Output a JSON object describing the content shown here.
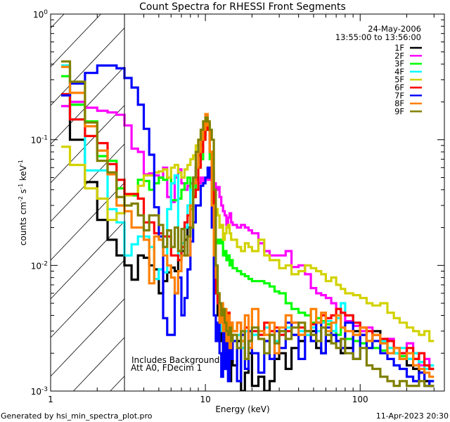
{
  "chart_data": {
    "type": "line",
    "title": "Count Spectra for RHESSI Front Segments",
    "xlabel": "Energy (keV)",
    "ylabel": "counts cm-2 s-1 keV-1",
    "ylabel_parts": {
      "base": "counts cm",
      "e1": "-2",
      "mid": " s",
      "e2": "-1",
      "tail": " keV",
      "e3": "-1"
    },
    "xscale": "log",
    "yscale": "log",
    "xlim": [
      1,
      350
    ],
    "ylim": [
      0.001,
      1
    ],
    "x_ticks": [
      {
        "v": 1,
        "label": "1"
      },
      {
        "v": 10,
        "label": "10"
      },
      {
        "v": 100,
        "label": "100"
      }
    ],
    "y_ticks": [
      {
        "v": 1,
        "base": "10",
        "exp": "0"
      },
      {
        "v": 0.1,
        "base": "10",
        "exp": "-1"
      },
      {
        "v": 0.01,
        "base": "10",
        "exp": "-2"
      },
      {
        "v": 0.001,
        "base": "10",
        "exp": "-3"
      }
    ],
    "shaded_region_keV": [
      1,
      3
    ],
    "date": "24-May-2006",
    "time_range": "13:55:00 to 13:56:00",
    "annotations": [
      "Includes Background",
      "Att A0, FDecim 1"
    ],
    "legend_position": "top-right",
    "energy_edges": [
      1.17,
      1.333,
      1.667,
      2,
      2.333,
      2.667,
      3,
      3.333,
      3.667,
      4,
      4.333,
      4.667,
      5,
      5.333,
      5.667,
      6,
      6.333,
      6.667,
      7,
      7.333,
      7.667,
      8,
      8.333,
      8.667,
      9,
      9.333,
      9.667,
      10,
      10.333,
      10.667,
      11,
      11.333,
      11.667,
      12,
      12.333,
      12.667,
      13,
      13.333,
      13.667,
      14,
      14.333,
      14.667,
      15,
      16,
      17,
      18,
      19,
      20,
      22,
      24,
      26,
      28,
      30,
      33,
      36,
      40,
      44,
      48,
      52,
      56,
      60,
      65,
      70,
      75,
      80,
      90,
      100,
      110,
      120,
      135,
      150,
      165,
      180,
      200,
      220,
      240,
      260,
      280,
      300
    ],
    "series": [
      {
        "name": "1F",
        "color": "#000000",
        "values": [
          0.23,
          0.1,
          0.046,
          0.023,
          0.016,
          0.012,
          0.01,
          0.0077,
          0.012,
          0.0115,
          0.01,
          0.0093,
          0.006,
          0.0075,
          0.0088,
          0.0096,
          0.009,
          0.011,
          0.013,
          0.016,
          0.02,
          0.03,
          0.045,
          0.06,
          0.075,
          0.09,
          0.11,
          0.14,
          0.12,
          0.08,
          0.04,
          0.012,
          0.006,
          0.004,
          0.003,
          0.0025,
          0.002,
          0.0028,
          0.0015,
          0.0022,
          0.0012,
          0.0018,
          0.0016,
          0.0025,
          0.001,
          0.0014,
          0.002,
          0.0011,
          0.0013,
          0.0009,
          0.0012,
          0.0018,
          0.002,
          0.0015,
          0.0022,
          0.0025,
          0.0028,
          0.003,
          0.0022,
          0.002,
          0.0025,
          0.0028,
          0.0025,
          0.002,
          0.0022,
          0.003,
          0.0028,
          0.0025,
          0.003,
          0.0025,
          0.0022,
          0.002,
          0.0018,
          0.0016,
          0.0015,
          0.0014,
          0.0012,
          0.0011
        ]
      },
      {
        "name": "2F",
        "color": "#ff00ff",
        "values": [
          0.185,
          0.2,
          0.18,
          0.17,
          0.165,
          0.158,
          0.13,
          0.085,
          0.08,
          0.053,
          0.054,
          0.052,
          0.05,
          0.06,
          0.035,
          0.032,
          0.05,
          0.058,
          0.045,
          0.04,
          0.043,
          0.045,
          0.05,
          0.048,
          0.045,
          0.05,
          0.047,
          0.048,
          0.05,
          0.048,
          0.055,
          0.045,
          0.04,
          0.042,
          0.035,
          0.03,
          0.027,
          0.025,
          0.021,
          0.024,
          0.026,
          0.022,
          0.021,
          0.02,
          0.021,
          0.02,
          0.019,
          0.018,
          0.015,
          0.013,
          0.012,
          0.012,
          0.012,
          0.013,
          0.0097,
          0.01,
          0.0085,
          0.0066,
          0.006,
          0.0058,
          0.0055,
          0.005,
          0.0045,
          0.0042,
          0.0036,
          0.0033,
          0.003,
          0.0032,
          0.0028,
          0.0025,
          0.0026,
          0.0022,
          0.002,
          0.0024,
          0.0018,
          0.0016,
          0.0018,
          0.0015
        ]
      },
      {
        "name": "3F",
        "color": "#00ff00",
        "values": [
          0.32,
          0.19,
          0.14,
          0.074,
          0.068,
          0.041,
          0.036,
          0.036,
          0.048,
          0.047,
          0.04,
          0.045,
          0.05,
          0.048,
          0.05,
          0.033,
          0.033,
          0.034,
          0.04,
          0.045,
          0.05,
          0.028,
          0.035,
          0.05,
          0.06,
          0.07,
          0.1,
          0.13,
          0.12,
          0.07,
          0.03,
          0.016,
          0.015,
          0.016,
          0.015,
          0.016,
          0.012,
          0.013,
          0.011,
          0.012,
          0.01,
          0.011,
          0.0095,
          0.009,
          0.0085,
          0.0082,
          0.0078,
          0.0075,
          0.0075,
          0.0072,
          0.0068,
          0.0062,
          0.006,
          0.005,
          0.0045,
          0.0042,
          0.004,
          0.0035,
          0.0038,
          0.0036,
          0.0034,
          0.003,
          0.0028,
          0.0032,
          0.0026,
          0.0025,
          0.0024,
          0.0025,
          0.0022,
          0.0021,
          0.0022,
          0.002,
          0.0019,
          0.0018,
          0.002,
          0.0017,
          0.0016,
          0.0015
        ]
      },
      {
        "name": "4F",
        "color": "#00ffff",
        "values": [
          0.39,
          0.145,
          0.057,
          0.057,
          0.028,
          0.022,
          0.012,
          0.0147,
          0.017,
          0.017,
          0.014,
          0.0078,
          0.0093,
          0.0088,
          0.028,
          0.045,
          0.052,
          0.012,
          0.015,
          0.02,
          0.03,
          0.04,
          0.05,
          0.06,
          0.08,
          0.1,
          0.12,
          0.14,
          0.12,
          0.08,
          0.04,
          0.01,
          0.006,
          0.005,
          0.004,
          0.003,
          0.0035,
          0.003,
          0.0028,
          0.003,
          0.0025,
          0.0027,
          0.0025,
          0.0028,
          0.0022,
          0.003,
          0.0025,
          0.0028,
          0.003,
          0.0032,
          0.0028,
          0.0025,
          0.003,
          0.0032,
          0.0035,
          0.003,
          0.0028,
          0.0032,
          0.003,
          0.0035,
          0.0036,
          0.003,
          0.0038,
          0.005,
          0.004,
          0.0035,
          0.0032,
          0.003,
          0.0028,
          0.0025,
          0.0022,
          0.002,
          0.0022,
          0.0018,
          0.002,
          0.0017,
          0.0015,
          0.0016
        ]
      },
      {
        "name": "5F",
        "color": "#d2d200",
        "values": [
          0.088,
          0.063,
          0.041,
          0.034,
          0.023,
          0.026,
          0.036,
          0.037,
          0.043,
          0.052,
          0.052,
          0.055,
          0.056,
          0.058,
          0.05,
          0.06,
          0.063,
          0.055,
          0.05,
          0.058,
          0.063,
          0.07,
          0.075,
          0.09,
          0.1,
          0.116,
          0.12,
          0.14,
          0.12,
          0.08,
          0.05,
          0.03,
          0.028,
          0.025,
          0.02,
          0.021,
          0.016,
          0.018,
          0.02,
          0.021,
          0.018,
          0.016,
          0.016,
          0.014,
          0.013,
          0.015,
          0.014,
          0.013,
          0.016,
          0.012,
          0.011,
          0.011,
          0.0095,
          0.01,
          0.0085,
          0.009,
          0.01,
          0.0095,
          0.009,
          0.0085,
          0.0075,
          0.008,
          0.007,
          0.0065,
          0.006,
          0.0058,
          0.0055,
          0.005,
          0.0048,
          0.005,
          0.0042,
          0.0038,
          0.0035,
          0.0032,
          0.003,
          0.0028,
          0.003,
          0.0025
        ]
      },
      {
        "name": "6F",
        "color": "#ff0000",
        "values": [
          0.23,
          0.145,
          0.107,
          0.094,
          0.064,
          0.048,
          0.037,
          0.037,
          0.034,
          0.022,
          0.022,
          0.018,
          0.018,
          0.017,
          0.017,
          0.012,
          0.012,
          0.011,
          0.014,
          0.022,
          0.025,
          0.03,
          0.035,
          0.04,
          0.06,
          0.08,
          0.1,
          0.15,
          0.12,
          0.08,
          0.04,
          0.015,
          0.006,
          0.005,
          0.0045,
          0.004,
          0.003,
          0.0038,
          0.0025,
          0.0042,
          0.002,
          0.0035,
          0.003,
          0.0035,
          0.0028,
          0.0032,
          0.0025,
          0.003,
          0.0028,
          0.0035,
          0.003,
          0.0032,
          0.0028,
          0.003,
          0.0035,
          0.0032,
          0.003,
          0.0034,
          0.0035,
          0.004,
          0.0038,
          0.004,
          0.0045,
          0.0042,
          0.004,
          0.0035,
          0.0032,
          0.003,
          0.0028,
          0.0026,
          0.0025,
          0.0022,
          0.002,
          0.0022,
          0.0018,
          0.002,
          0.0016,
          0.0015
        ]
      },
      {
        "name": "7F",
        "color": "#0000ff",
        "values": [
          0.225,
          0.28,
          0.34,
          0.39,
          0.39,
          0.37,
          0.31,
          0.26,
          0.19,
          0.122,
          0.076,
          0.029,
          0.017,
          0.0038,
          0.0028,
          0.0028,
          0.006,
          0.008,
          0.004,
          0.0055,
          0.0093,
          0.0155,
          0.022,
          0.03,
          0.03,
          0.043,
          0.045,
          0.05,
          0.06,
          0.05,
          0.02,
          0.004,
          0.0025,
          0.0035,
          0.002,
          0.0013,
          0.003,
          0.0015,
          0.0028,
          0.0012,
          0.0022,
          0.0018,
          0.0025,
          0.0012,
          0.0028,
          0.0015,
          0.003,
          0.002,
          0.0014,
          0.0025,
          0.0018,
          0.003,
          0.0022,
          0.0035,
          0.0028,
          0.0018,
          0.003,
          0.0025,
          0.0035,
          0.002,
          0.0032,
          0.0028,
          0.0025,
          0.0022,
          0.0035,
          0.0018,
          0.0028,
          0.0022,
          0.0025,
          0.002,
          0.0018,
          0.0016,
          0.0015,
          0.0013,
          0.0012,
          0.0014,
          0.0011,
          0.0012
        ]
      },
      {
        "name": "8F",
        "color": "#ff8000",
        "values": [
          0.38,
          0.236,
          0.128,
          0.082,
          0.053,
          0.03,
          0.027,
          0.02,
          0.02,
          0.016,
          0.0072,
          0.017,
          0.016,
          0.012,
          0.01,
          0.008,
          0.006,
          0.009,
          0.012,
          0.012,
          0.012,
          0.03,
          0.045,
          0.06,
          0.08,
          0.1,
          0.12,
          0.16,
          0.13,
          0.08,
          0.03,
          0.012,
          0.008,
          0.006,
          0.0035,
          0.005,
          0.003,
          0.0045,
          0.0025,
          0.004,
          0.0022,
          0.0035,
          0.003,
          0.0035,
          0.0025,
          0.004,
          0.0022,
          0.0045,
          0.003,
          0.0028,
          0.0035,
          0.002,
          0.0032,
          0.004,
          0.0035,
          0.0028,
          0.003,
          0.0045,
          0.0035,
          0.0042,
          0.003,
          0.0035,
          0.004,
          0.0032,
          0.003,
          0.0028,
          0.0032,
          0.0025,
          0.0028,
          0.0024,
          0.002,
          0.0022,
          0.0018,
          0.002,
          0.0016,
          0.0015,
          0.0014,
          0.0013
        ]
      },
      {
        "name": "9F",
        "color": "#808000",
        "values": [
          0.42,
          0.29,
          0.137,
          0.068,
          0.055,
          0.035,
          0.03,
          0.031,
          0.025,
          0.019,
          0.025,
          0.025,
          0.021,
          0.014,
          0.019,
          0.014,
          0.02,
          0.013,
          0.0195,
          0.012,
          0.017,
          0.02,
          0.05,
          0.08,
          0.1,
          0.12,
          0.14,
          0.15,
          0.14,
          0.12,
          0.1,
          0.04,
          0.01,
          0.006,
          0.005,
          0.004,
          0.0045,
          0.0035,
          0.003,
          0.0028,
          0.0032,
          0.0025,
          0.0028,
          0.0022,
          0.003,
          0.0018,
          0.0025,
          0.0032,
          0.0026,
          0.002,
          0.0028,
          0.0024,
          0.003,
          0.0026,
          0.0032,
          0.0035,
          0.003,
          0.0028,
          0.0025,
          0.0032,
          0.0028,
          0.0024,
          0.0022,
          0.0026,
          0.002,
          0.0018,
          0.0022,
          0.0016,
          0.0015,
          0.0013,
          0.0012,
          0.0011,
          0.0012,
          0.0011,
          0.0011,
          0.0012,
          0.0011,
          0.0011
        ]
      }
    ]
  },
  "footer": {
    "generated_by": "Generated by hsi_min_spectra_plot.pro",
    "timestamp": "11-Apr-2023 20:30"
  }
}
